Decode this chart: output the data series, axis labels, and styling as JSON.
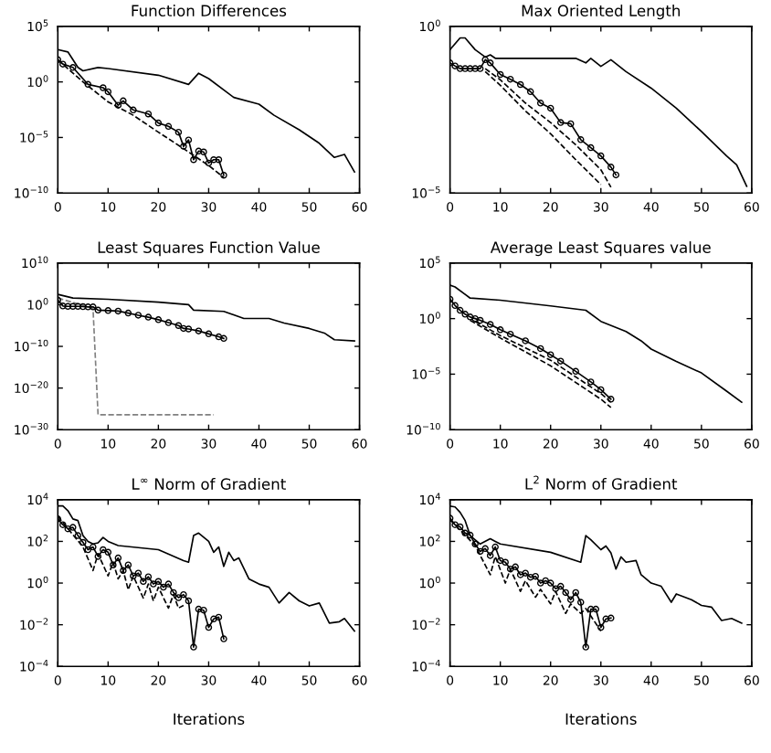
{
  "chart_data": [
    {
      "type": "line",
      "title": "Function Differences",
      "log": "y",
      "xlim": [
        0,
        60
      ],
      "xticks": [
        0,
        10,
        20,
        30,
        40,
        50,
        60
      ],
      "ylim": [
        1e-10,
        100000.0
      ],
      "yticks": [
        {
          "value": 100000.0,
          "label": "10$^{5}$"
        },
        {
          "value": 1,
          "label": "10$^{0}$"
        },
        {
          "value": 1e-05,
          "label": "10$^{−5}$"
        },
        {
          "value": 1e-10,
          "label": "10$^{−10}$"
        }
      ],
      "series": [
        {
          "color": "#000000",
          "line_style": "solid",
          "marker": "none",
          "x": [
            0,
            2,
            4,
            5,
            8,
            10,
            20,
            26,
            28,
            30,
            35,
            40,
            43,
            48,
            52,
            55,
            57,
            59
          ],
          "values": [
            800,
            500,
            20,
            10,
            20,
            16,
            4,
            0.6,
            6,
            2,
            0.04,
            0.01,
            0.001,
            5e-05,
            3e-06,
            1.6e-07,
            3e-07,
            8e-09
          ]
        },
        {
          "color": "#000000",
          "line_style": "solid",
          "marker": "circle",
          "x": [
            0,
            1,
            3,
            6,
            9,
            10,
            12,
            13,
            15,
            18,
            20,
            22,
            24,
            25,
            26,
            27,
            28,
            29,
            30,
            31,
            32,
            33
          ],
          "values": [
            100,
            40,
            20,
            0.6,
            0.3,
            0.13,
            0.008,
            0.02,
            0.003,
            0.0013,
            0.0002,
            0.0001,
            3e-05,
            1.6e-06,
            6e-06,
            1e-07,
            6e-07,
            5e-07,
            5e-08,
            1e-07,
            1e-07,
            4e-09
          ]
        },
        {
          "color": "#000000",
          "line_style": "dashed",
          "marker": "none",
          "x": [
            0,
            5,
            10,
            15,
            20,
            25,
            30,
            33
          ],
          "values": [
            100,
            1,
            0.016,
            0.001,
            3e-05,
            1e-06,
            3e-08,
            2.5e-09
          ]
        }
      ]
    },
    {
      "type": "line",
      "title": "Max Oriented Length",
      "log": "y",
      "xlim": [
        0,
        60
      ],
      "xticks": [
        0,
        10,
        20,
        30,
        40,
        50,
        60
      ],
      "ylim": [
        1e-05,
        1
      ],
      "yticks": [
        {
          "value": 1,
          "label": "10$^{0}$"
        },
        {
          "value": 1e-05,
          "label": "10$^{−5}$"
        }
      ],
      "series": [
        {
          "color": "#000000",
          "line_style": "solid",
          "marker": "none",
          "x": [
            0,
            2,
            3,
            5,
            7,
            8,
            9,
            25,
            27,
            28,
            30,
            32,
            35,
            40,
            45,
            50,
            55,
            57,
            59
          ],
          "values": [
            0.2,
            0.45,
            0.45,
            0.2,
            0.12,
            0.14,
            0.11,
            0.11,
            0.08,
            0.11,
            0.063,
            0.1,
            0.044,
            0.014,
            0.0035,
            0.0007,
            0.00013,
            7e-05,
            1.6e-05
          ]
        },
        {
          "color": "#000000",
          "line_style": "solid",
          "marker": "circle",
          "x": [
            0,
            1,
            2,
            3,
            4,
            5,
            6,
            7,
            8,
            10,
            12,
            14,
            16,
            18,
            20,
            22,
            24,
            26,
            28,
            30,
            32,
            33
          ],
          "values": [
            0.08,
            0.065,
            0.054,
            0.054,
            0.054,
            0.054,
            0.054,
            0.1,
            0.08,
            0.036,
            0.026,
            0.018,
            0.011,
            0.005,
            0.0035,
            0.0013,
            0.0012,
            0.0004,
            0.00023,
            0.00013,
            6e-05,
            3.5e-05
          ]
        },
        {
          "color": "#000000",
          "line_style": "dashed",
          "marker": "none",
          "x": [
            7,
            10,
            15,
            20,
            25,
            30,
            32
          ],
          "values": [
            0.054,
            0.025,
            0.005,
            0.0013,
            0.00028,
            5e-05,
            1.5e-05
          ]
        },
        {
          "color": "#000000",
          "line_style": "dashed",
          "marker": "none",
          "x": [
            7,
            10,
            15,
            20,
            25,
            30
          ],
          "values": [
            0.044,
            0.017,
            0.0029,
            0.0006,
            0.0001,
            1.8e-05
          ]
        }
      ]
    },
    {
      "type": "line",
      "title": "Least Squares Function Value",
      "log": "y",
      "xlim": [
        0,
        60
      ],
      "xticks": [
        0,
        10,
        20,
        30,
        40,
        50,
        60
      ],
      "ylim": [
        1e-30,
        10000000000.0
      ],
      "yticks": [
        {
          "value": 10000000000.0,
          "label": "10$^{10}$"
        },
        {
          "value": 1,
          "label": "10$^{0}$"
        },
        {
          "value": 1e-10,
          "label": "10$^{−10}$"
        },
        {
          "value": 1e-20,
          "label": "10$^{−20}$"
        },
        {
          "value": 1e-30,
          "label": "10$^{−30}$"
        }
      ],
      "series": [
        {
          "color": "#000000",
          "line_style": "solid",
          "marker": "none",
          "x": [
            0,
            3,
            10,
            20,
            26,
            27,
            33,
            37,
            42,
            45,
            50,
            53,
            55,
            59
          ],
          "values": [
            300,
            40,
            20,
            4,
            1,
            0.05,
            0.025,
            0.0005,
            0.0005,
            4e-05,
            2e-06,
            1.6e-07,
            4e-09,
            2e-09
          ]
        },
        {
          "color": "#000000",
          "line_style": "solid",
          "marker": "circle",
          "x": [
            0,
            1,
            2,
            3,
            4,
            5,
            6,
            7,
            8,
            10,
            12,
            14,
            16,
            18,
            20,
            22,
            24,
            25,
            26,
            28,
            30,
            32,
            33
          ],
          "values": [
            13,
            0.5,
            0.4,
            0.4,
            0.4,
            0.35,
            0.3,
            0.3,
            0.05,
            0.04,
            0.03,
            0.01,
            0.003,
            0.001,
            0.00025,
            5e-05,
            1e-05,
            2e-06,
            1.5e-06,
            5e-07,
            1e-07,
            2e-08,
            8e-09
          ]
        },
        {
          "color": "#808080",
          "line_style": "dashed",
          "marker": "none",
          "x": [
            0,
            7,
            8,
            31
          ],
          "values": [
            40,
            0.13,
            4e-27,
            4e-27
          ]
        }
      ]
    },
    {
      "type": "line",
      "title": "Average Least Squares value",
      "log": "y",
      "xlim": [
        0,
        60
      ],
      "xticks": [
        0,
        10,
        20,
        30,
        40,
        50,
        60
      ],
      "ylim": [
        1e-10,
        100000.0
      ],
      "yticks": [
        {
          "value": 100000.0,
          "label": "10$^{5}$"
        },
        {
          "value": 1,
          "label": "10$^{0}$"
        },
        {
          "value": 1e-05,
          "label": "10$^{−5}$"
        },
        {
          "value": 1e-10,
          "label": "10$^{−10}$"
        }
      ],
      "series": [
        {
          "color": "#000000",
          "line_style": "solid",
          "marker": "none",
          "x": [
            0,
            1,
            4,
            10,
            20,
            27,
            30,
            35,
            38,
            40,
            45,
            50,
            55,
            58
          ],
          "values": [
            1000,
            700,
            70,
            45,
            14,
            5.6,
            0.56,
            0.07,
            0.01,
            0.0018,
            0.00014,
            1.3e-05,
            3e-07,
            3e-08
          ]
        },
        {
          "color": "#000000",
          "line_style": "solid",
          "marker": "circle",
          "x": [
            0,
            1,
            2,
            3,
            4,
            5,
            6,
            8,
            10,
            12,
            15,
            18,
            20,
            22,
            25,
            28,
            30,
            32
          ],
          "values": [
            56,
            15,
            5.6,
            2.5,
            1.4,
            1,
            0.7,
            0.3,
            0.1,
            0.04,
            0.01,
            0.002,
            0.00056,
            0.00015,
            1.8e-05,
            2e-06,
            4e-07,
            5.6e-08
          ]
        },
        {
          "color": "#000000",
          "line_style": "dashed",
          "marker": "none",
          "x": [
            4,
            10,
            20,
            30,
            32
          ],
          "values": [
            0.7,
            0.018,
            5.6e-05,
            5.6e-08,
            1e-08
          ]
        },
        {
          "color": "#000000",
          "line_style": "dashed",
          "marker": "none",
          "x": [
            5,
            10,
            20,
            30,
            32
          ],
          "values": [
            0.56,
            0.03,
            0.00018,
            1.8e-07,
            3e-08
          ]
        }
      ]
    },
    {
      "type": "line",
      "title": "L$^{∞}$ Norm of Gradient",
      "xlabel": "Iterations",
      "log": "y",
      "xlim": [
        0,
        60
      ],
      "xticks": [
        0,
        10,
        20,
        30,
        40,
        50,
        60
      ],
      "ylim": [
        0.0001,
        10000.0
      ],
      "yticks": [
        {
          "value": 10000.0,
          "label": "10$^{4}$"
        },
        {
          "value": 100,
          "label": "10$^{2}$"
        },
        {
          "value": 1,
          "label": "10$^{0}$"
        },
        {
          "value": 0.01,
          "label": "10$^{−2}$"
        },
        {
          "value": 0.0001,
          "label": "10$^{−4}$"
        }
      ],
      "series": [
        {
          "color": "#000000",
          "line_style": "solid",
          "marker": "none",
          "x": [
            0,
            1,
            2,
            3,
            4,
            5,
            6,
            7,
            8,
            9,
            10,
            12,
            20,
            25,
            26,
            27,
            28,
            30,
            31,
            32,
            33,
            34,
            35,
            36,
            38,
            40,
            42,
            44,
            46,
            48,
            50,
            52,
            54,
            56,
            57,
            59
          ],
          "values": [
            5000,
            5000,
            3000,
            1200,
            1000,
            190,
            100,
            75,
            85,
            155,
            100,
            63,
            40,
            12,
            10,
            190,
            250,
            100,
            30,
            54,
            6.3,
            30,
            12,
            16,
            1.6,
            0.9,
            0.63,
            0.11,
            0.35,
            0.14,
            0.08,
            0.11,
            0.012,
            0.014,
            0.02,
            0.005
          ]
        },
        {
          "color": "#000000",
          "line_style": "solid",
          "marker": "circle",
          "x": [
            0,
            1,
            2,
            3,
            4,
            5,
            6,
            7,
            8,
            9,
            10,
            11,
            12,
            13,
            14,
            15,
            16,
            17,
            18,
            19,
            20,
            21,
            22,
            23,
            24,
            25,
            26,
            27,
            28,
            29,
            30,
            31,
            32,
            33
          ],
          "values": [
            1200,
            630,
            400,
            470,
            190,
            90,
            40,
            54,
            19,
            40,
            30,
            7.4,
            16,
            4,
            7.4,
            2.2,
            3,
            1.2,
            2,
            0.9,
            1.2,
            0.63,
            0.9,
            0.35,
            0.2,
            0.28,
            0.14,
            0.00085,
            0.056,
            0.05,
            0.0074,
            0.019,
            0.023,
            0.0021
          ]
        },
        {
          "color": "#000000",
          "line_style": "dashed",
          "marker": "none",
          "x": [
            0,
            5,
            7,
            8,
            10,
            11,
            12,
            13,
            14,
            15,
            17,
            18,
            19,
            20,
            22,
            23,
            24,
            25
          ],
          "values": [
            1600,
            54,
            4,
            25,
            2.2,
            10,
            1.6,
            4,
            0.48,
            2.2,
            0.19,
            0.9,
            0.14,
            0.63,
            0.063,
            0.28,
            0.063,
            0.085
          ]
        }
      ]
    },
    {
      "type": "line",
      "title": "L$^{2}$ Norm of Gradient",
      "xlabel": "Iterations",
      "log": "y",
      "xlim": [
        0,
        60
      ],
      "xticks": [
        0,
        10,
        20,
        30,
        40,
        50,
        60
      ],
      "ylim": [
        0.0001,
        10000.0
      ],
      "yticks": [
        {
          "value": 10000.0,
          "label": "10$^{4}$"
        },
        {
          "value": 100,
          "label": "10$^{2}$"
        },
        {
          "value": 1,
          "label": "10$^{0}$"
        },
        {
          "value": 0.01,
          "label": "10$^{−2}$"
        },
        {
          "value": 0.0001,
          "label": "10$^{−4}$"
        }
      ],
      "series": [
        {
          "color": "#000000",
          "line_style": "solid",
          "marker": "none",
          "x": [
            0,
            1,
            2,
            3,
            4,
            6,
            8,
            9,
            10,
            20,
            26,
            27,
            28,
            30,
            31,
            32,
            33,
            34,
            35,
            37,
            38,
            40,
            42,
            44,
            45,
            48,
            50,
            52,
            54,
            56,
            58
          ],
          "values": [
            5000,
            4500,
            2500,
            1000,
            190,
            75,
            135,
            100,
            75,
            30,
            10,
            190,
            120,
            40,
            60,
            28,
            4.7,
            18,
            10,
            12,
            2.5,
            1,
            0.7,
            0.12,
            0.3,
            0.16,
            0.085,
            0.07,
            0.016,
            0.02,
            0.012
          ]
        },
        {
          "color": "#000000",
          "line_style": "solid",
          "marker": "circle",
          "x": [
            0,
            1,
            2,
            3,
            4,
            5,
            6,
            7,
            8,
            9,
            10,
            11,
            12,
            13,
            14,
            15,
            16,
            17,
            18,
            19,
            20,
            21,
            22,
            23,
            24,
            25,
            26,
            27,
            28,
            29,
            30,
            31,
            32
          ],
          "values": [
            1300,
            630,
            500,
            250,
            200,
            75,
            33,
            45,
            21,
            54,
            12,
            10,
            4.7,
            6,
            2.5,
            3,
            1.9,
            2.1,
            1,
            1.3,
            1,
            0.54,
            0.7,
            0.35,
            0.16,
            0.35,
            0.12,
            0.00085,
            0.056,
            0.056,
            0.0074,
            0.019,
            0.021
          ]
        },
        {
          "color": "#000000",
          "line_style": "dashed",
          "marker": "none",
          "x": [
            0,
            5,
            8,
            9,
            11,
            12,
            14,
            15,
            17,
            18,
            20,
            21,
            23,
            24,
            26,
            27,
            30
          ],
          "values": [
            1100,
            63,
            2.5,
            19,
            1,
            4.7,
            0.4,
            1.3,
            0.21,
            0.5,
            0.1,
            0.4,
            0.035,
            0.1,
            0.035,
            0.06,
            0.005
          ]
        }
      ]
    }
  ]
}
